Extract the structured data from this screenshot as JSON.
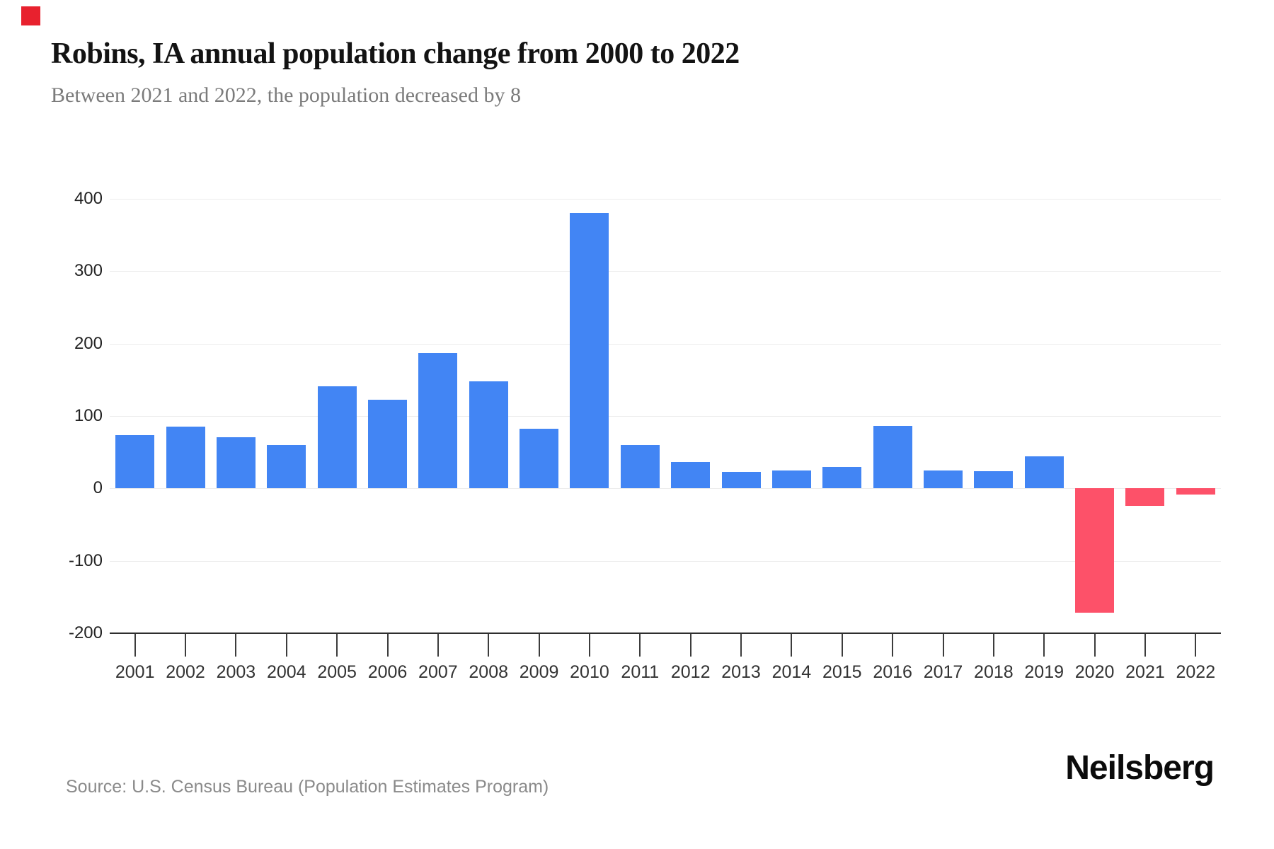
{
  "page": {
    "background": "#ffffff",
    "corner_mark_color": "#e8212e"
  },
  "header": {
    "title": "Robins, IA annual population change from 2000 to 2022",
    "subtitle": "Between 2021 and 2022, the population decreased by 8"
  },
  "chart_data": {
    "type": "bar",
    "title": "Robins, IA annual population change from 2000 to 2022",
    "subtitle": "Between 2021 and 2022, the population decreased by 8",
    "categories": [
      "2001",
      "2002",
      "2003",
      "2004",
      "2005",
      "2006",
      "2007",
      "2008",
      "2009",
      "2010",
      "2011",
      "2012",
      "2013",
      "2014",
      "2015",
      "2016",
      "2017",
      "2018",
      "2019",
      "2020",
      "2021",
      "2022"
    ],
    "values": [
      74,
      85,
      71,
      60,
      141,
      122,
      187,
      148,
      82,
      380,
      60,
      36,
      23,
      25,
      30,
      86,
      25,
      24,
      44,
      -172,
      -24,
      -8
    ],
    "xlabel": "",
    "ylabel": "",
    "ylim": [
      -200,
      400
    ],
    "yticks": [
      400,
      300,
      200,
      100,
      0,
      -100,
      -200
    ],
    "grid": true,
    "legend": "none",
    "positive_color": "#4285f4",
    "negative_color": "#fd5169"
  },
  "footer": {
    "source": "Source: U.S. Census Bureau (Population Estimates Program)",
    "brand": "Neilsberg"
  }
}
